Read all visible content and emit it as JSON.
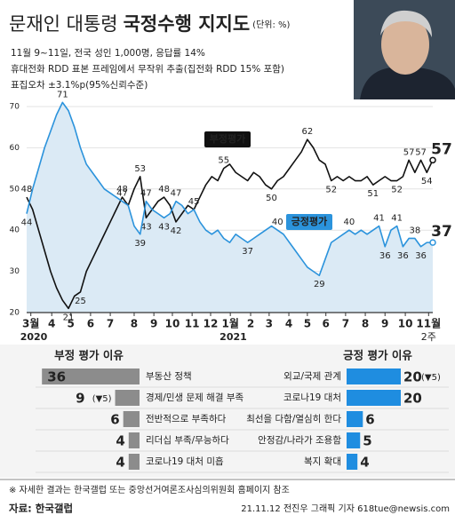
{
  "header": {
    "title_main": "문재인 대통령",
    "title_bold": "국정수행 지지도",
    "unit": "(단위: %)",
    "notes": [
      "11월 9~11일, 전국 성인 1,000명, 응답률 14%",
      "휴대전화 RDD 표본 프레임에서 무작위 추출(집전화 RDD 15% 포함)",
      "표집오차 ±3.1%p(95%신뢰수준)"
    ]
  },
  "chart_data": [
    {
      "type": "line",
      "x": [
        0,
        1,
        2,
        3,
        4,
        5,
        6,
        7,
        8,
        9,
        10,
        11,
        12,
        13,
        14,
        15,
        16,
        17,
        18,
        19,
        20,
        21,
        22,
        23,
        24,
        25,
        26,
        27,
        28,
        29,
        30,
        31,
        32,
        33,
        34,
        35,
        36,
        37,
        38,
        39,
        40,
        41,
        42,
        43,
        44,
        45,
        46,
        47,
        48,
        49,
        50,
        51,
        52,
        53,
        54,
        55,
        56,
        57,
        58,
        59,
        60,
        61,
        62,
        63,
        64,
        65,
        66,
        67,
        68
      ],
      "series": [
        {
          "name": "부정평가",
          "color": "#111111",
          "values": [
            48,
            45,
            40,
            35,
            30,
            26,
            23,
            21,
            24,
            25,
            30,
            33,
            36,
            39,
            42,
            45,
            48,
            46,
            50,
            53,
            43,
            45,
            47,
            48,
            46,
            42,
            44,
            46,
            45,
            48,
            51,
            53,
            52,
            55,
            56,
            54,
            53,
            52,
            54,
            53,
            51,
            50,
            52,
            53,
            55,
            57,
            59,
            62,
            60,
            57,
            56,
            52,
            53,
            52,
            53,
            52,
            52,
            53,
            51,
            52,
            53,
            52,
            52,
            53,
            57,
            54,
            57,
            54,
            57
          ],
          "value_labels": [
            "48",
            null,
            null,
            null,
            null,
            null,
            null,
            "21",
            null,
            "25",
            null,
            null,
            null,
            null,
            null,
            null,
            "48",
            null,
            null,
            "53",
            "43",
            null,
            null,
            "48",
            null,
            "42",
            null,
            null,
            null,
            null,
            null,
            null,
            null,
            "55",
            null,
            null,
            null,
            null,
            null,
            null,
            null,
            "50",
            null,
            null,
            null,
            null,
            null,
            "62",
            null,
            null,
            null,
            "52",
            null,
            null,
            null,
            null,
            null,
            null,
            "51",
            null,
            null,
            null,
            "52",
            null,
            "57",
            null,
            "57",
            "54",
            "57"
          ]
        },
        {
          "name": "긍정평가",
          "color": "#2b93dc",
          "values": [
            44,
            50,
            55,
            60,
            64,
            68,
            71,
            69,
            65,
            60,
            56,
            54,
            52,
            50,
            49,
            48,
            47,
            46,
            41,
            39,
            47,
            45,
            44,
            43,
            44,
            47,
            46,
            44,
            45,
            42,
            40,
            39,
            40,
            38,
            37,
            39,
            38,
            37,
            38,
            39,
            40,
            41,
            40,
            39,
            37,
            35,
            33,
            31,
            30,
            29,
            33,
            37,
            38,
            39,
            40,
            39,
            40,
            39,
            40,
            41,
            36,
            40,
            41,
            36,
            38,
            38,
            36,
            37,
            37
          ],
          "value_labels": [
            "44",
            null,
            null,
            null,
            null,
            null,
            "71",
            null,
            null,
            null,
            null,
            null,
            null,
            null,
            null,
            null,
            "47",
            null,
            null,
            "39",
            "47",
            null,
            null,
            "43",
            null,
            "47",
            null,
            null,
            "45",
            null,
            null,
            null,
            null,
            null,
            null,
            null,
            null,
            "37",
            null,
            null,
            null,
            null,
            "40",
            null,
            null,
            null,
            null,
            null,
            null,
            "29",
            null,
            null,
            null,
            null,
            "40",
            null,
            null,
            null,
            null,
            "41",
            "36",
            null,
            "41",
            "36",
            null,
            "38",
            "36",
            null,
            "37"
          ]
        }
      ],
      "xlim": [
        0,
        68
      ],
      "ylim": [
        20,
        70
      ],
      "yticks": [
        20,
        30,
        40,
        50,
        60,
        70
      ],
      "xticks": [
        {
          "value": 0.7,
          "label": "3월"
        },
        {
          "value": 4.2,
          "label": "4"
        },
        {
          "value": 7.4,
          "label": "5"
        },
        {
          "value": 10.7,
          "label": "6"
        },
        {
          "value": 14,
          "label": "7"
        },
        {
          "value": 18,
          "label": "8"
        },
        {
          "value": 21.3,
          "label": "9"
        },
        {
          "value": 24.4,
          "label": "10"
        },
        {
          "value": 27.7,
          "label": "11"
        },
        {
          "value": 30.8,
          "label": "12"
        },
        {
          "value": 34.1,
          "label": "1월"
        },
        {
          "value": 37.5,
          "label": "2"
        },
        {
          "value": 40.6,
          "label": "3"
        },
        {
          "value": 43.9,
          "label": "4"
        },
        {
          "value": 47,
          "label": "5"
        },
        {
          "value": 50.1,
          "label": "6"
        },
        {
          "value": 53.4,
          "label": "7"
        },
        {
          "value": 56.7,
          "label": "8"
        },
        {
          "value": 60,
          "label": "9"
        },
        {
          "value": 63.4,
          "label": "10"
        },
        {
          "value": 67.3,
          "label": "11월"
        }
      ],
      "last_tick_note": "2주",
      "year_labels": [
        {
          "value": 0.7,
          "label": "2020"
        },
        {
          "value": 34.1,
          "label": "2021"
        }
      ],
      "area_color": "#dbeaf5",
      "grid": true
    },
    {
      "type": "bar",
      "title": "부정 평가 이유",
      "color": "#8c8c8c",
      "categories": [
        "부동산 정책",
        "경제/민생 문제 해결 부족",
        "전반적으로 부족하다",
        "리더십 부족/무능하다",
        "코로나19 대처 미흡"
      ],
      "values": [
        36,
        9,
        6,
        4,
        4
      ],
      "changes": [
        null,
        "(▼5)",
        null,
        null,
        null
      ]
    },
    {
      "type": "bar",
      "title": "긍정 평가 이유",
      "color": "#1f8de0",
      "categories": [
        "외교/국제 관계",
        "코로나19 대처",
        "최선을 다함/열심히 한다",
        "안정감/나라가 조용함",
        "복지 확대"
      ],
      "values": [
        20,
        20,
        6,
        5,
        4
      ],
      "changes": [
        "(▼5)",
        null,
        null,
        null,
        null
      ]
    }
  ],
  "footer": {
    "note": "※ 자세한 결과는 한국갤럽 또는 중앙선거여론조사심의위원회 홈페이지 참조",
    "source": "자료: 한국갤럽",
    "credit": "21.11.12 전진우 그래픽 기자 618tue@newsis.com"
  }
}
